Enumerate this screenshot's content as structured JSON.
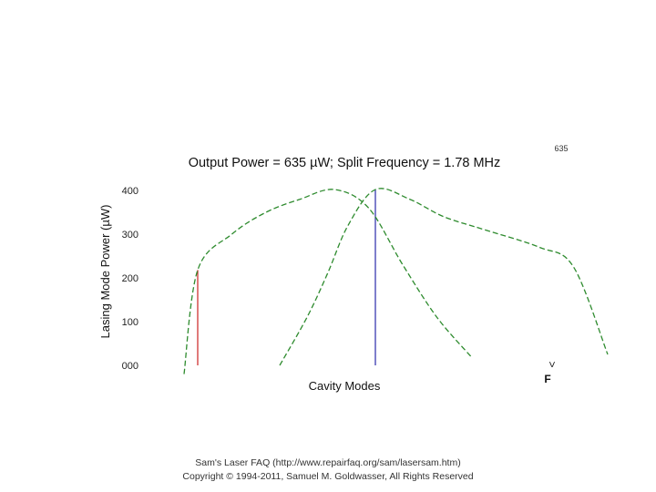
{
  "chart_data": {
    "type": "line",
    "title": "Output Power = 635 µW; Split Frequency = 1.78 MHz",
    "ylabel": "Lasing Mode Power (µW)",
    "xlabel": "Cavity Modes",
    "ylim": [
      0,
      400
    ],
    "yticks": [
      "000",
      "100",
      "200",
      "300",
      "400"
    ],
    "corner_label": "635",
    "x_marker_top": ">",
    "x_marker_bottom": "F",
    "grid": false,
    "legend": "none",
    "colors": {
      "curve": "#2e8b2e",
      "red_mode": "#cc2222",
      "blue_mode": "#2a2aaa"
    },
    "series": [
      {
        "points": [
          [
            -0.1,
            -20
          ],
          [
            0,
            218
          ],
          [
            0.25,
            300
          ],
          [
            0.5,
            350
          ],
          [
            0.75,
            380
          ],
          [
            1.0,
            402
          ],
          [
            1.25,
            360
          ],
          [
            1.5,
            230
          ],
          [
            1.75,
            110
          ],
          [
            2.0,
            20
          ]
        ]
      },
      {
        "points": [
          [
            0.6,
            0
          ],
          [
            0.8,
            110
          ],
          [
            0.95,
            210
          ],
          [
            1.1,
            320
          ],
          [
            1.3,
            402
          ],
          [
            1.55,
            380
          ],
          [
            1.8,
            340
          ],
          [
            2.1,
            310
          ],
          [
            2.5,
            270
          ],
          [
            2.75,
            225
          ],
          [
            3.0,
            25
          ]
        ]
      }
    ],
    "modes": [
      {
        "x": 0.0,
        "value": 218,
        "color": "#cc2222"
      },
      {
        "x": 1.3,
        "value": 402,
        "color": "#2a2aaa"
      }
    ]
  },
  "footer": {
    "line1": "Sam's Laser FAQ (http://www.repairfaq.org/sam/lasersam.htm)",
    "line2": "Copyright © 1994-2011, Samuel M. Goldwasser, All Rights Reserved"
  }
}
